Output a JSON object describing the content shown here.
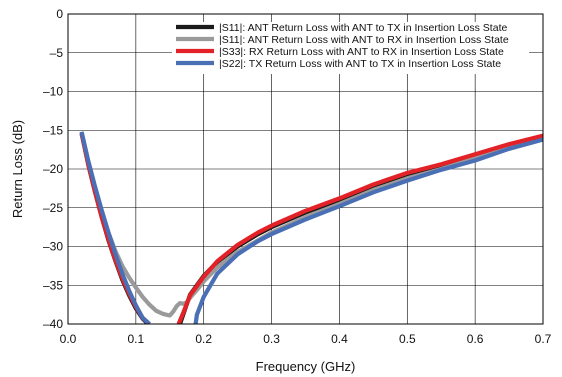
{
  "chart_data": {
    "type": "line",
    "xlabel": "Frequency (GHz)",
    "ylabel": "Return Loss (dB)",
    "xlim": [
      0,
      0.7
    ],
    "ylim": [
      -40,
      0
    ],
    "x_ticks": [
      0.0,
      0.1,
      0.2,
      0.3,
      0.4,
      0.5,
      0.6,
      0.7
    ],
    "x_tick_labels": [
      "0.0",
      "0.1",
      "0.2",
      "0.3",
      "0.4",
      "0.5",
      "0.6",
      "0.7"
    ],
    "y_ticks": [
      0,
      -5,
      -10,
      -15,
      -20,
      -25,
      -30,
      -35,
      -40
    ],
    "y_tick_labels": [
      "0",
      "–5",
      "–10",
      "–15",
      "–20",
      "–25",
      "–30",
      "–35",
      "–40"
    ],
    "grid": true,
    "legend_position": "top-right",
    "series": [
      {
        "name": "|S11|: ANT Return Loss with ANT to TX in Insertion Loss State",
        "color": "#1a1a1a",
        "segments": [
          [
            [
              0.02,
              -15.4
            ],
            [
              0.03,
              -19.5
            ],
            [
              0.04,
              -23.0
            ],
            [
              0.05,
              -26.3
            ],
            [
              0.06,
              -29.3
            ],
            [
              0.07,
              -31.9
            ],
            [
              0.08,
              -34.3
            ],
            [
              0.09,
              -36.3
            ],
            [
              0.1,
              -38.0
            ],
            [
              0.11,
              -39.3
            ],
            [
              0.118,
              -40.0
            ]
          ],
          [
            [
              0.165,
              -40.0
            ],
            [
              0.18,
              -36.2
            ],
            [
              0.2,
              -33.8
            ],
            [
              0.22,
              -32.0
            ],
            [
              0.25,
              -30.0
            ],
            [
              0.28,
              -28.4
            ],
            [
              0.3,
              -27.5
            ],
            [
              0.35,
              -25.6
            ],
            [
              0.4,
              -24.0
            ],
            [
              0.45,
              -22.2
            ],
            [
              0.5,
              -20.7
            ],
            [
              0.55,
              -19.6
            ],
            [
              0.6,
              -18.3
            ],
            [
              0.65,
              -17.0
            ],
            [
              0.7,
              -15.9
            ]
          ]
        ]
      },
      {
        "name": "|S11|: ANT Return Loss with ANT to RX in Insertion Loss State",
        "color": "#9a9a9a",
        "segments": [
          [
            [
              0.02,
              -15.4
            ],
            [
              0.03,
              -19.3
            ],
            [
              0.04,
              -22.6
            ],
            [
              0.05,
              -25.6
            ],
            [
              0.06,
              -28.3
            ],
            [
              0.07,
              -30.6
            ],
            [
              0.08,
              -32.5
            ],
            [
              0.09,
              -34.0
            ],
            [
              0.1,
              -35.3
            ],
            [
              0.11,
              -36.5
            ],
            [
              0.12,
              -37.5
            ],
            [
              0.13,
              -38.3
            ],
            [
              0.14,
              -38.7
            ],
            [
              0.15,
              -38.9
            ],
            [
              0.155,
              -38.4
            ],
            [
              0.16,
              -37.7
            ],
            [
              0.165,
              -37.3
            ],
            [
              0.17,
              -37.4
            ],
            [
              0.175,
              -37.2
            ],
            [
              0.18,
              -36.6
            ],
            [
              0.19,
              -35.6
            ],
            [
              0.2,
              -34.5
            ],
            [
              0.22,
              -32.7
            ],
            [
              0.25,
              -30.7
            ],
            [
              0.28,
              -29.2
            ],
            [
              0.3,
              -28.2
            ],
            [
              0.35,
              -26.2
            ],
            [
              0.4,
              -24.5
            ],
            [
              0.45,
              -22.7
            ],
            [
              0.5,
              -21.2
            ],
            [
              0.55,
              -20.0
            ],
            [
              0.6,
              -18.6
            ],
            [
              0.65,
              -17.3
            ],
            [
              0.7,
              -16.1
            ]
          ]
        ]
      },
      {
        "name": "|S33|: RX Return Loss with ANT to RX in Insertion Loss State",
        "color": "#e32228",
        "segments": [
          [
            [
              0.02,
              -15.4
            ],
            [
              0.03,
              -19.5
            ],
            [
              0.04,
              -23.0
            ],
            [
              0.05,
              -26.3
            ],
            [
              0.06,
              -29.2
            ],
            [
              0.07,
              -31.8
            ],
            [
              0.08,
              -34.1
            ],
            [
              0.09,
              -36.1
            ],
            [
              0.1,
              -37.8
            ],
            [
              0.11,
              -39.2
            ],
            [
              0.12,
              -40.0
            ]
          ],
          [
            [
              0.163,
              -40.0
            ],
            [
              0.17,
              -38.5
            ],
            [
              0.18,
              -36.3
            ],
            [
              0.2,
              -33.9
            ],
            [
              0.22,
              -31.9
            ],
            [
              0.25,
              -29.8
            ],
            [
              0.28,
              -28.2
            ],
            [
              0.3,
              -27.3
            ],
            [
              0.35,
              -25.4
            ],
            [
              0.4,
              -23.8
            ],
            [
              0.45,
              -22.0
            ],
            [
              0.5,
              -20.5
            ],
            [
              0.55,
              -19.4
            ],
            [
              0.6,
              -18.1
            ],
            [
              0.65,
              -16.8
            ],
            [
              0.7,
              -15.7
            ]
          ]
        ]
      },
      {
        "name": "|S22|: TX Return Loss with ANT to TX in Insertion Loss State",
        "color": "#4a6fb5",
        "segments": [
          [
            [
              0.02,
              -15.2
            ],
            [
              0.03,
              -19.0
            ],
            [
              0.04,
              -22.3
            ],
            [
              0.05,
              -25.4
            ],
            [
              0.06,
              -28.3
            ],
            [
              0.07,
              -31.0
            ],
            [
              0.08,
              -33.5
            ],
            [
              0.09,
              -35.7
            ],
            [
              0.1,
              -37.6
            ],
            [
              0.11,
              -39.2
            ],
            [
              0.12,
              -40.0
            ]
          ],
          [
            [
              0.188,
              -40.0
            ],
            [
              0.19,
              -38.8
            ],
            [
              0.2,
              -36.5
            ],
            [
              0.22,
              -33.5
            ],
            [
              0.25,
              -31.0
            ],
            [
              0.28,
              -29.3
            ],
            [
              0.3,
              -28.4
            ],
            [
              0.35,
              -26.5
            ],
            [
              0.4,
              -24.8
            ],
            [
              0.45,
              -23.0
            ],
            [
              0.5,
              -21.5
            ],
            [
              0.55,
              -20.1
            ],
            [
              0.6,
              -18.9
            ],
            [
              0.65,
              -17.4
            ],
            [
              0.7,
              -16.2
            ]
          ]
        ]
      }
    ]
  }
}
